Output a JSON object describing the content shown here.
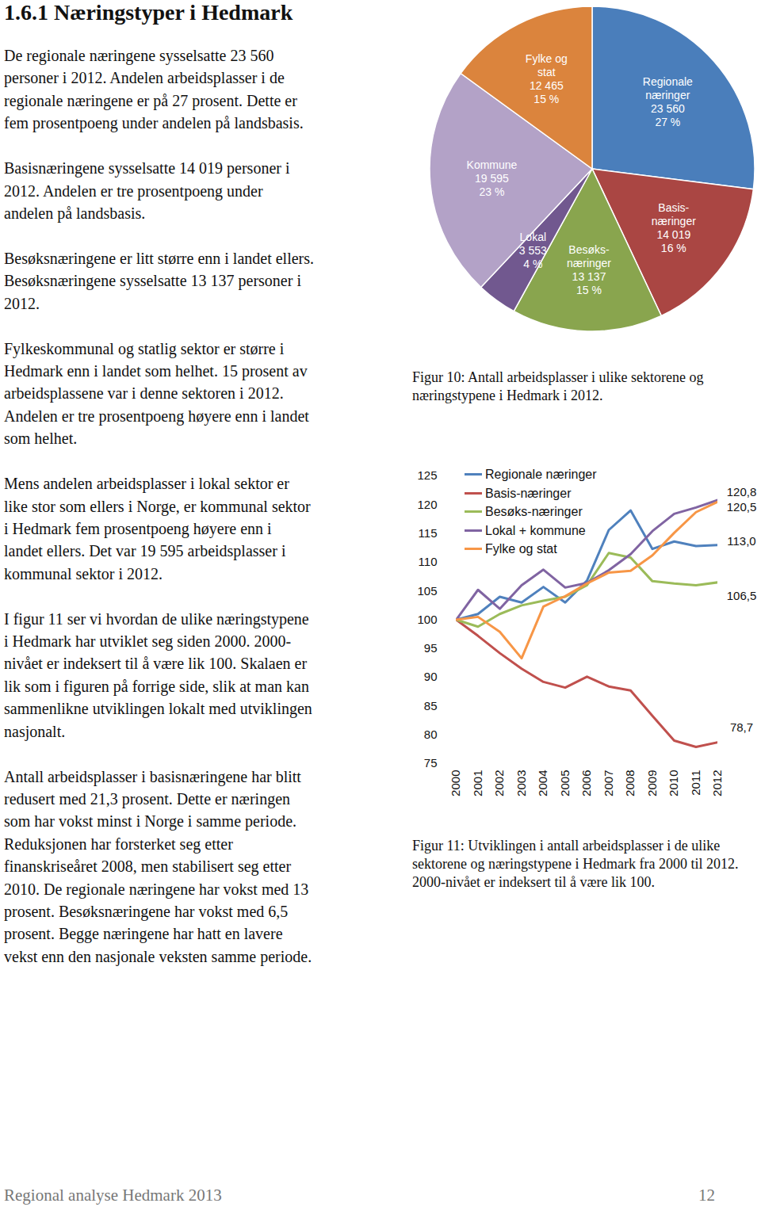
{
  "heading": "1.6.1 Næringstyper i Hedmark",
  "paragraphs": [
    [
      "De regionale næringene sysselsatte 23 560",
      "personer i 2012. Andelen arbeidsplasser i de",
      "regionale næringene er på 27 prosent. Dette er",
      "fem prosentpoeng under andelen på landsbasis."
    ],
    [
      "Basisnæringene sysselsatte 14 019 personer i",
      "2012. Andelen er tre prosentpoeng under",
      "andelen på landsbasis."
    ],
    [
      "Besøksnæringene er litt større enn i landet ellers.",
      "Besøksnæringene sysselsatte 13 137 personer i",
      "2012."
    ],
    [
      "Fylkeskommunal og statlig sektor er større i",
      "Hedmark enn i landet som helhet. 15 prosent av",
      "arbeidsplassene var i denne sektoren i 2012.",
      "Andelen er tre prosentpoeng høyere enn i landet",
      "som helhet."
    ],
    [
      "Mens andelen arbeidsplasser i lokal sektor er",
      "like stor som ellers i Norge, er kommunal sektor",
      "i Hedmark fem prosentpoeng høyere enn i",
      "landet ellers. Det var 19 595 arbeidsplasser i",
      "kommunal sektor i 2012."
    ],
    [
      "I figur 11 ser vi hvordan de ulike næringstypene",
      "i Hedmark har utviklet seg siden 2000. 2000-",
      "nivået er indeksert til å være lik 100. Skalaen er",
      "lik som i figuren på forrige side, slik at man kan",
      "sammenlikne utviklingen lokalt med utviklingen",
      "nasjonalt."
    ],
    [
      "Antall arbeidsplasser i basisnæringene har blitt",
      "redusert med 21,3 prosent. Dette er næringen",
      "som har vokst minst i Norge i samme periode.",
      "Reduksjonen har forsterket seg etter",
      "finanskriseåret 2008, men stabilisert seg etter",
      "2010. De regionale næringene har vokst med 13",
      "prosent. Besøksnæringene har vokst med 6,5",
      "prosent. Begge næringene har hatt en lavere",
      "vekst enn den nasjonale veksten samme periode."
    ]
  ],
  "chart_data": [
    {
      "type": "pie",
      "caption": "Figur 10: Antall arbeidsplasser i ulike sektorene og næringstypene i Hedmark i 2012.",
      "categories": [
        "Regionale\nnæringer",
        "Basis-\nnæringer",
        "Besøks-\nnæringer",
        "Lokal",
        "Kommune",
        "Fylke og\nstat"
      ],
      "values": [
        27,
        16,
        15,
        4,
        23,
        15
      ],
      "value_labels": [
        "27 %",
        "16 %",
        "15 %",
        "4 %",
        "23 %",
        "15 %"
      ],
      "counts": [
        23560,
        14019,
        13137,
        3553,
        19595,
        12465
      ],
      "count_labels": [
        "23 560",
        "14 019",
        "13 137",
        "3 553",
        "19 595",
        "12 465"
      ],
      "colors": [
        "#4a7ebb",
        "#aa4643",
        "#89a54e",
        "#71588f",
        "#b3a2c7",
        "#db843d"
      ],
      "data_labels": true
    },
    {
      "type": "line",
      "caption": "Figur 11: Utviklingen i antall arbeidsplasser i de ulike sektorene og næringstypene i Hedmark fra 2000 til 2012. 2000-nivået er indeksert til å være lik 100.",
      "x": [
        2000,
        2001,
        2002,
        2003,
        2004,
        2005,
        2006,
        2007,
        2008,
        2009,
        2010,
        2011,
        2012
      ],
      "xlim": [
        2000,
        2012
      ],
      "xticks": [
        2000,
        2001,
        2002,
        2003,
        2004,
        2005,
        2006,
        2007,
        2008,
        2009,
        2010,
        2011,
        2012
      ],
      "ylim": [
        75,
        125
      ],
      "yticks": [
        75,
        80,
        85,
        90,
        95,
        100,
        105,
        110,
        115,
        120,
        125
      ],
      "grid": false,
      "legend": "top-left",
      "series": [
        {
          "name": "Regionale næringer",
          "color": "#4f81bd",
          "end_label": "113,0",
          "values": [
            100,
            101,
            104,
            103,
            105.7,
            103,
            106.8,
            115.6,
            119,
            112.3,
            113.6,
            112.8,
            113.0
          ]
        },
        {
          "name": "Basis-næringer",
          "color": "#c0504d",
          "end_label": "78,7",
          "values": [
            100,
            97.2,
            94.2,
            91.5,
            89.2,
            88.2,
            90.1,
            88.4,
            87.7,
            83.3,
            79.0,
            77.9,
            78.7
          ]
        },
        {
          "name": "Besøks-næringer",
          "color": "#9bbb59",
          "end_label": "106,5",
          "values": [
            100,
            98.8,
            101,
            102.5,
            103.3,
            104,
            106,
            111.6,
            110.8,
            106.7,
            106.3,
            106,
            106.5
          ]
        },
        {
          "name": "Lokal + kommune",
          "color": "#8064a2",
          "end_label": "120,8",
          "values": [
            100,
            105.2,
            101.9,
            106,
            108.7,
            105.6,
            106.4,
            108.6,
            111.4,
            115.4,
            118.4,
            119.5,
            120.8
          ]
        },
        {
          "name": "Fylke og stat",
          "color": "#f79646",
          "end_label": "120,5",
          "values": [
            100,
            100.5,
            97.9,
            93.3,
            102.3,
            104.1,
            106.3,
            108.2,
            108.5,
            111.2,
            115.1,
            118.7,
            120.5
          ]
        }
      ]
    }
  ],
  "footer": {
    "left": "Regional analyse Hedmark 2013",
    "right": "12"
  }
}
